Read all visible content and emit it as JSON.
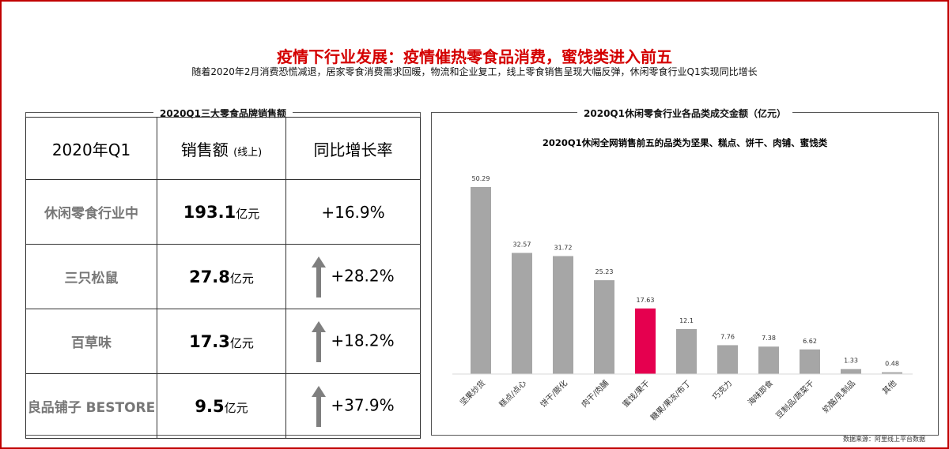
{
  "header": {
    "title": "疫情下行业发展：疫情催热零食品消费，蜜饯类进入前五",
    "subtitle": "随着2020年2月消费恐慌减退，居家零食消费需求回暖，物流和企业复工，线上零食销售呈现大幅反弹，休闲零食行业Q1实现同比增长"
  },
  "table": {
    "title": "2020Q1三大零食品牌销售额",
    "header": [
      "2020年Q1",
      "销售额",
      "同比增长率"
    ],
    "header_note": "(线上)",
    "unit": "亿元",
    "rows": [
      [
        "休闲零食行业中",
        193.1,
        "+16.9%"
      ],
      [
        "三只松鼠",
        27.8,
        "+28.2%"
      ],
      [
        "百草味",
        17.3,
        "+18.2%"
      ],
      [
        "良品铺子 BESTORE",
        9.5,
        "+37.9%"
      ]
    ],
    "arrows": [
      false,
      true,
      true,
      true
    ]
  },
  "chart_data": {
    "type": "bar",
    "title": "2020Q1休闲零食行业各品类成交金额（亿元）",
    "subtitle": "2020Q1休闲全网销售前五的品类为坚果、糕点、饼干、肉铺、蜜饯类",
    "categories": [
      "坚果炒货",
      "糕点/点心",
      "饼干/膨化",
      "肉干/肉脯",
      "蜜饯/果干",
      "糖果/果冻/布丁",
      "巧克力",
      "海味即食",
      "豆制品/蔬菜干",
      "奶酪/乳制品",
      "其他"
    ],
    "values": [
      50.29,
      32.57,
      31.72,
      25.23,
      17.63,
      12.1,
      7.76,
      7.38,
      6.62,
      1.33,
      0.48
    ],
    "colors": [
      "#a6a6a6",
      "#a6a6a6",
      "#a6a6a6",
      "#a6a6a6",
      "#e5004f",
      "#a6a6a6",
      "#a6a6a6",
      "#a6a6a6",
      "#a6a6a6",
      "#a6a6a6",
      "#a6a6a6"
    ]
  },
  "footer": {
    "source": "数据来源：阿里线上平台数据"
  }
}
